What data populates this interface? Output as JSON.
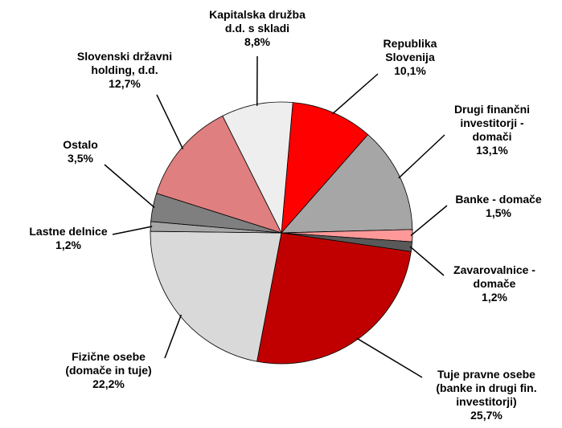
{
  "chart_data": {
    "type": "pie",
    "categories": [
      "Republika\nSlovenija",
      "Drugi finančni\ninvestitorji -\ndomači",
      "Banke - domače",
      "Zavarovalnice -\ndomače",
      "Tuje pravne osebe\n(banke in drugi fin.\ninvestitorji)",
      "Fizične osebe\n(domače in tuje)",
      "Lastne delnice",
      "Ostalo",
      "Slovenski državni\nholding, d.d.",
      "Kapitalska družba\nd.d. s skladi"
    ],
    "values": [
      10.1,
      13.1,
      1.5,
      1.2,
      25.7,
      22.2,
      1.2,
      3.5,
      12.7,
      8.8
    ],
    "value_labels": [
      "10,1%",
      "13,1%",
      "1,5%",
      "1,2%",
      "25,7%",
      "22,2%",
      "1,2%",
      "3,5%",
      "12,7%",
      "8,8%"
    ],
    "colors": [
      "#ff0000",
      "#a6a6a6",
      "#ff9999",
      "#595959",
      "#c00000",
      "#d9d9d9",
      "#a6a6a6",
      "#7f7f7f",
      "#e07f7f",
      "#eeeeee"
    ]
  }
}
